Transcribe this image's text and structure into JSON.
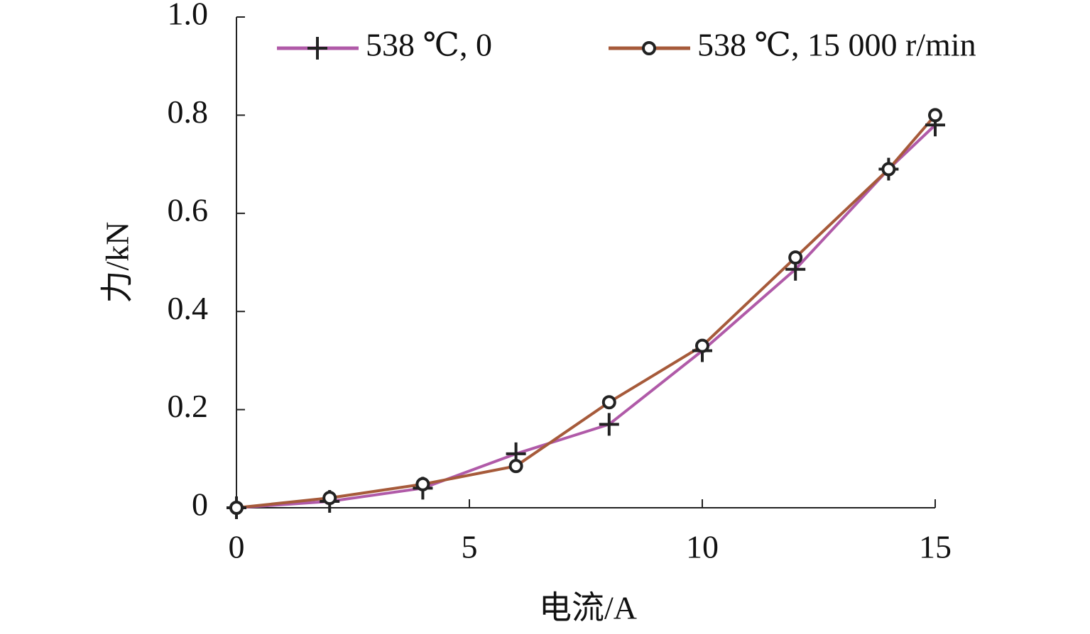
{
  "chart_data": {
    "type": "line",
    "x_label": "电流/A",
    "y_label": "力/kN",
    "x": [
      0,
      2,
      4,
      6,
      8,
      10,
      12,
      14,
      15
    ],
    "series": [
      {
        "name": "538 ℃, 0",
        "color": "#b05aa8",
        "marker": "plus",
        "values": [
          0,
          0.013,
          0.04,
          0.11,
          0.17,
          0.32,
          0.486,
          0.69,
          0.78
        ]
      },
      {
        "name": "538 ℃, 15 000 r/min",
        "color": "#a65a3a",
        "marker": "circle",
        "values": [
          0,
          0.02,
          0.048,
          0.085,
          0.215,
          0.33,
          0.51,
          0.69,
          0.8
        ]
      }
    ],
    "xlim": [
      0,
      15
    ],
    "xticks": [
      0,
      5,
      10,
      15
    ],
    "ylim": [
      0,
      1
    ],
    "yticks": [
      0,
      0.2,
      0.4,
      0.6,
      0.8,
      {
        "value": 1,
        "label": "1.0"
      }
    ],
    "legend": "top"
  }
}
